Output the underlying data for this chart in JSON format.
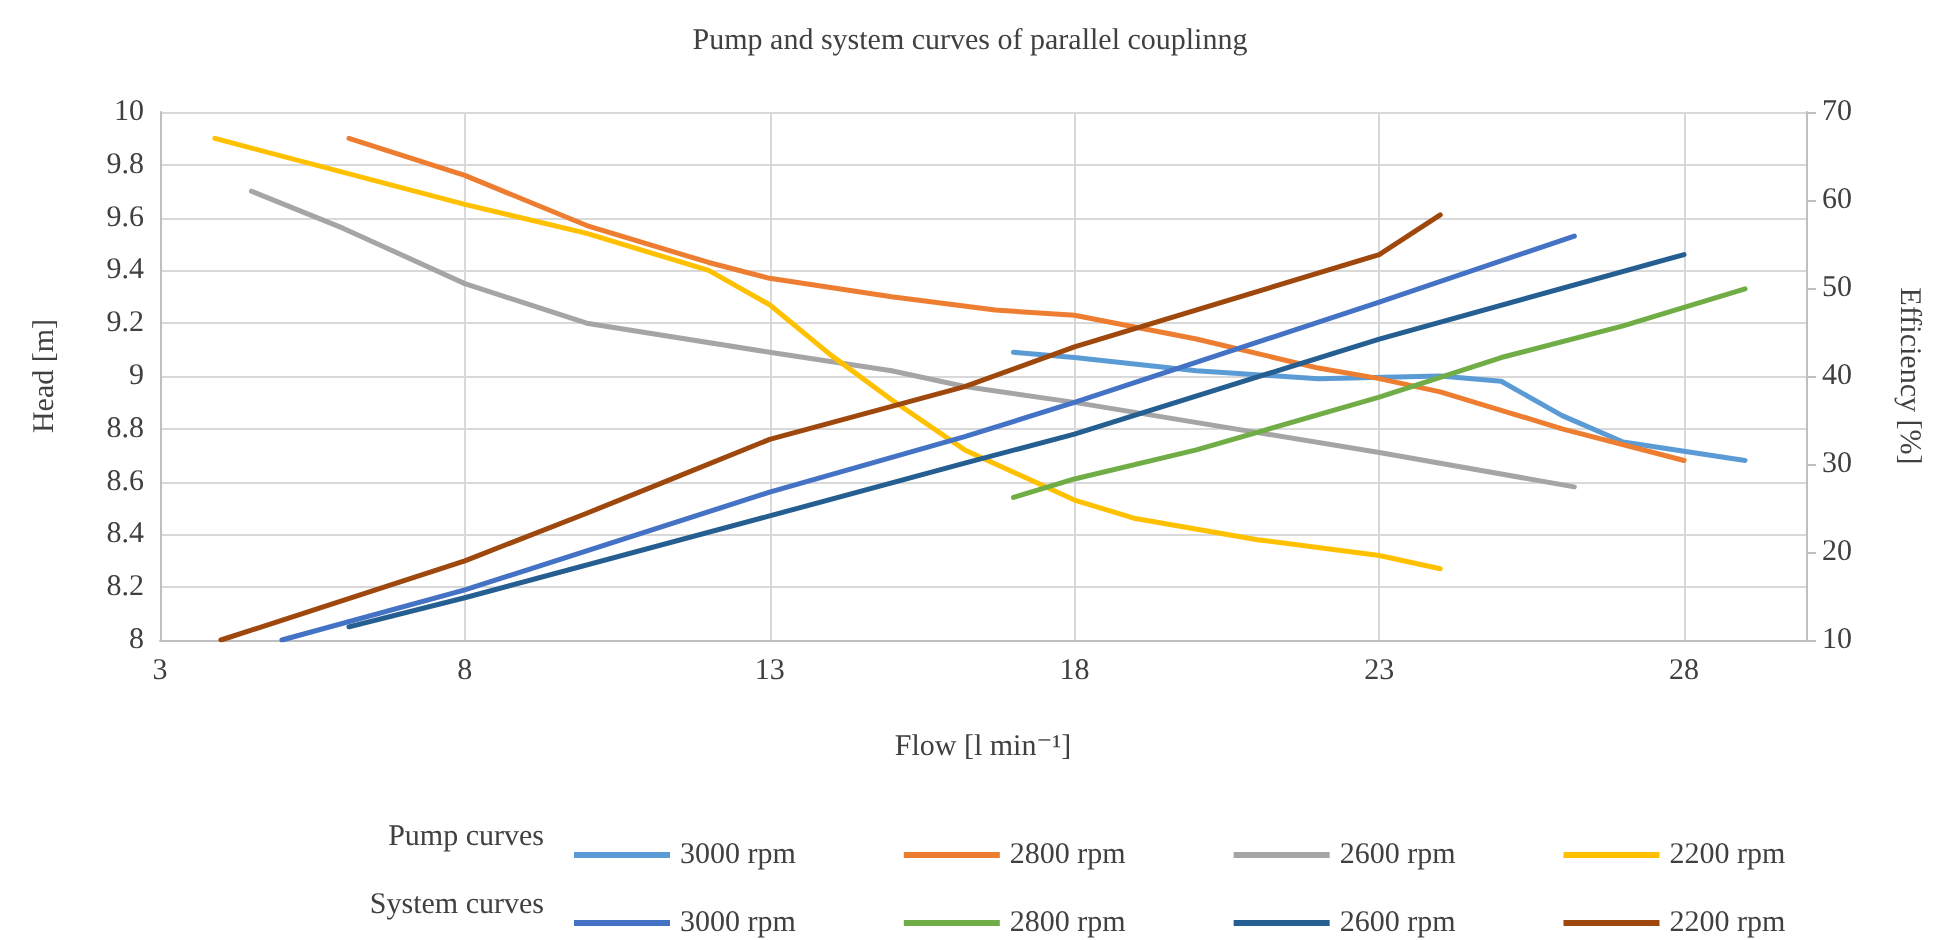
{
  "chart_data": {
    "type": "line",
    "title": "Pump and system curves of parallel couplinng",
    "xlabel": "Flow [l min⁻¹]",
    "ylabel": "Head [m]",
    "y2label": "Efficiency [%]",
    "xlim": [
      3,
      30
    ],
    "xticks": [
      3,
      8,
      13,
      18,
      23,
      28
    ],
    "ylim": [
      8,
      10
    ],
    "yticks": [
      8,
      8.2,
      8.4,
      8.6,
      8.8,
      9,
      9.2,
      9.4,
      9.6,
      9.8,
      10
    ],
    "y2lim": [
      10,
      70
    ],
    "y2ticks": [
      10,
      20,
      30,
      40,
      50,
      60,
      70
    ],
    "grid": true,
    "legend": "bottom",
    "marker": "none",
    "line_style": "solid",
    "annotations": [
      "Pump curves",
      "System curves"
    ],
    "series": [
      {
        "name": "3000 rpm",
        "color": "#5b9bd5",
        "x": [
          17,
          18,
          20,
          22,
          24,
          25,
          26,
          27,
          29
        ],
        "values": [
          9.09,
          9.07,
          9.02,
          8.99,
          9.0,
          8.98,
          8.85,
          8.75,
          8.68
        ]
      },
      {
        "name": "2800 rpm",
        "color": "#ed7d31",
        "x": [
          6.1,
          8,
          10,
          12,
          13,
          15,
          16.7,
          18,
          20,
          22,
          23,
          24,
          25,
          26,
          28
        ],
        "values": [
          9.9,
          9.76,
          9.57,
          9.43,
          9.37,
          9.3,
          9.25,
          9.23,
          9.14,
          9.03,
          8.99,
          8.94,
          8.87,
          8.8,
          8.68
        ]
      },
      {
        "name": "2600 rpm",
        "color": "#a5a5a5",
        "x": [
          4.5,
          6,
          8,
          10,
          13,
          15,
          16.2,
          18,
          23,
          26.2
        ],
        "values": [
          9.7,
          9.56,
          9.35,
          9.2,
          9.09,
          9.02,
          8.96,
          8.9,
          8.71,
          8.58
        ]
      },
      {
        "name": "2200 rpm",
        "color": "#ffc000",
        "x": [
          3.9,
          8,
          10,
          12,
          13,
          14,
          15,
          16.2,
          18,
          19,
          21,
          23,
          24
        ],
        "values": [
          9.9,
          9.65,
          9.54,
          9.4,
          9.27,
          9.08,
          8.91,
          8.72,
          8.53,
          8.46,
          8.38,
          8.32,
          8.27
        ]
      },
      {
        "name": "3000 rpm",
        "color": "#4472c4",
        "x": [
          5,
          8,
          13,
          16.2,
          18,
          23,
          26.2
        ],
        "values": [
          8.0,
          8.19,
          8.56,
          8.77,
          8.9,
          9.28,
          9.53
        ]
      },
      {
        "name": "2800 rpm",
        "color": "#70ad47",
        "x": [
          17,
          18,
          20,
          23,
          25,
          27,
          29
        ],
        "values": [
          8.54,
          8.61,
          8.72,
          8.92,
          9.07,
          9.19,
          9.33
        ]
      },
      {
        "name": "2600 rpm",
        "color": "#255e91",
        "x": [
          6.1,
          8,
          13,
          16.2,
          18,
          23,
          28
        ],
        "values": [
          8.05,
          8.16,
          8.47,
          8.67,
          8.78,
          9.14,
          9.46
        ]
      },
      {
        "name": "2200 rpm",
        "color": "#9e480e",
        "x": [
          4,
          8,
          10,
          11.5,
          13,
          16.2,
          18,
          23,
          24
        ],
        "values": [
          8.0,
          8.3,
          8.48,
          8.62,
          8.76,
          8.96,
          9.11,
          9.46,
          9.61
        ]
      }
    ]
  }
}
